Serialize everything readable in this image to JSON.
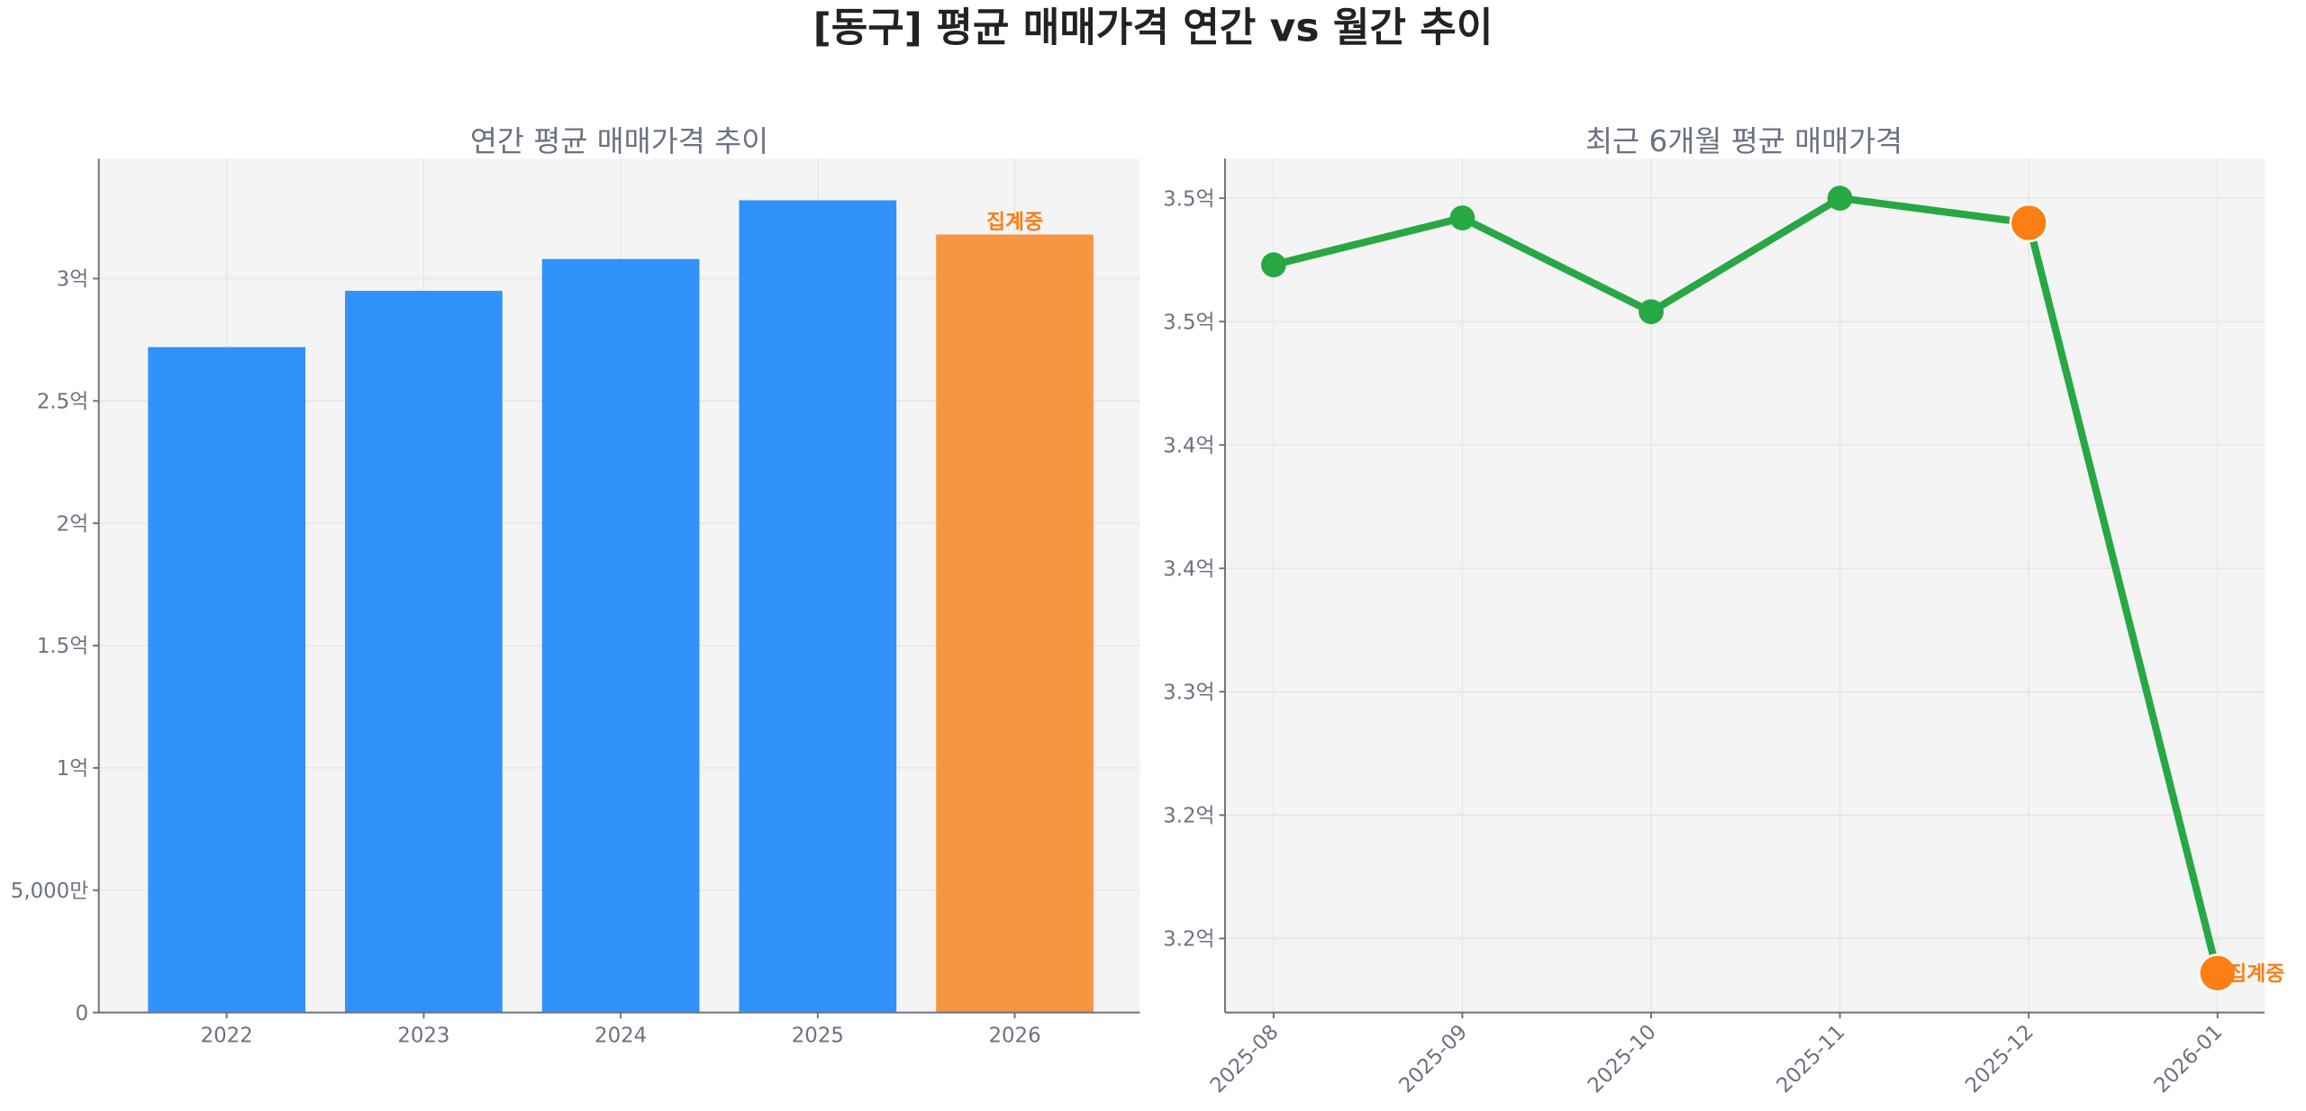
{
  "title": "[동구] 평균 매매가격 연간 vs 월간 추이",
  "chart_data": [
    {
      "type": "bar",
      "title": "연간 평균 매매가격 추이",
      "categories": [
        "2022",
        "2023",
        "2024",
        "2025",
        "2026"
      ],
      "values": [
        2.72,
        2.95,
        3.08,
        3.32,
        3.18
      ],
      "unit": "억",
      "ylim": [
        0,
        3.49
      ],
      "yticks": [
        0,
        0.5,
        1,
        1.5,
        2,
        2.5,
        3
      ],
      "ytick_labels": [
        "0",
        "5,000만",
        "1억",
        "1.5억",
        "2억",
        "2.5억",
        "3억"
      ],
      "bar_colors": [
        "#3192fa",
        "#3192fa",
        "#3192fa",
        "#3192fa",
        "#f89540"
      ],
      "annotations": [
        {
          "category": "2026",
          "text": "집계중",
          "color": "#fd7e14"
        }
      ],
      "grid": true
    },
    {
      "type": "line",
      "title": "최근 6개월 평균 매매가격",
      "x": [
        "2025-08",
        "2025-09",
        "2025-10",
        "2025-11",
        "2025-12",
        "2026-01"
      ],
      "values": [
        3.473,
        3.492,
        3.454,
        3.5,
        3.49,
        3.186
      ],
      "unit": "억",
      "ylim": [
        3.17,
        3.516
      ],
      "yticks": [
        3.2,
        3.25,
        3.3,
        3.35,
        3.4,
        3.45,
        3.5
      ],
      "ytick_labels": [
        "3.2억",
        "3.2억",
        "3.3억",
        "3.4억",
        "3.4억",
        "3.5억",
        "3.5억"
      ],
      "line_color": "#28a745",
      "highlight_color": "#fd7e14",
      "highlight_points": [
        "2025-12",
        "2026-01"
      ],
      "annotations": [
        {
          "x": "2026-01",
          "text": "집계중",
          "color": "#fd7e14"
        }
      ],
      "grid": true
    }
  ]
}
